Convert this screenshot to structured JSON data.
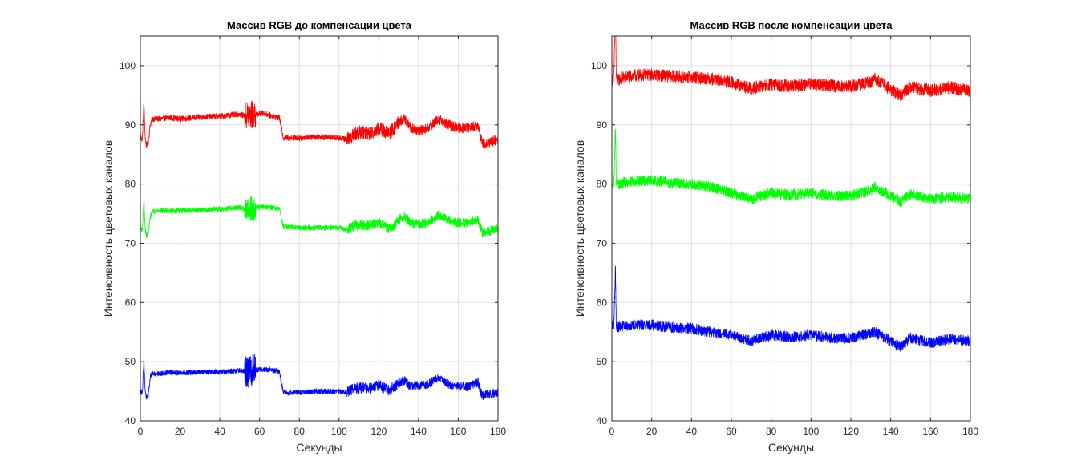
{
  "chart_data": [
    {
      "type": "line",
      "title": "Массив RGB до компенсации цвета",
      "xlabel": "Секунды",
      "ylabel": "Интенсивность цветовых каналов",
      "xlim": [
        0,
        180
      ],
      "ylim": [
        40,
        105
      ],
      "xticks": [
        0,
        20,
        40,
        60,
        80,
        100,
        120,
        140,
        160,
        180
      ],
      "yticks": [
        40,
        50,
        60,
        70,
        80,
        90,
        100
      ],
      "grid": true,
      "series": [
        {
          "color": "#ff0000",
          "x": [
            0,
            1,
            1.8,
            2.4,
            3,
            4,
            5,
            6,
            8,
            10,
            15,
            20,
            30,
            40,
            50,
            53,
            58,
            62,
            66,
            70,
            72,
            80,
            90,
            100,
            104,
            108,
            112,
            116,
            120,
            125,
            128,
            130,
            133,
            136,
            140,
            145,
            150,
            155,
            160,
            165,
            170,
            172,
            175,
            180
          ],
          "values": [
            88,
            87.5,
            94,
            88,
            86.5,
            87,
            90,
            91,
            91,
            91,
            91.2,
            91,
            91.3,
            91.5,
            91.8,
            91.5,
            91.8,
            92,
            91.5,
            91.2,
            87.8,
            87.8,
            88,
            87.8,
            87.5,
            88.5,
            88.8,
            88.5,
            89.5,
            88.5,
            89.5,
            90.5,
            91,
            89.5,
            89,
            89.5,
            91,
            90,
            89.5,
            89.5,
            90,
            86.8,
            87,
            87.5
          ],
          "noise": 0.5,
          "noise_segments": [
            [
              52.5,
              58,
              2.5
            ],
            [
              104,
              130,
              1.2
            ],
            [
              130,
              180,
              0.9
            ]
          ]
        },
        {
          "color": "#00ff00",
          "x": [
            0,
            1,
            1.8,
            2.4,
            3,
            4,
            5,
            6,
            8,
            10,
            15,
            20,
            30,
            40,
            50,
            53,
            58,
            62,
            66,
            70,
            72,
            80,
            90,
            100,
            104,
            108,
            112,
            116,
            120,
            125,
            128,
            130,
            133,
            136,
            140,
            145,
            150,
            155,
            160,
            165,
            170,
            172,
            175,
            180
          ],
          "values": [
            72.5,
            72.3,
            77.5,
            72.5,
            71.3,
            71.7,
            74.5,
            75.3,
            75.5,
            75.5,
            75.5,
            75.5,
            75.6,
            75.8,
            76,
            75.8,
            76,
            76.2,
            76,
            75.8,
            72.8,
            72.6,
            72.6,
            72.6,
            72.3,
            73,
            73,
            73,
            73.5,
            72.5,
            73,
            74,
            74.5,
            73.5,
            73.2,
            73.5,
            74.8,
            73.8,
            73.5,
            73.5,
            74,
            71.8,
            72,
            72.5
          ],
          "noise": 0.45,
          "noise_segments": [
            [
              52.5,
              58,
              2.2
            ],
            [
              104,
              130,
              0.9
            ],
            [
              130,
              180,
              0.8
            ]
          ]
        },
        {
          "color": "#0000ff",
          "x": [
            0,
            1,
            1.8,
            2.4,
            3,
            4,
            5,
            6,
            8,
            10,
            15,
            20,
            30,
            40,
            50,
            53,
            58,
            62,
            66,
            70,
            72,
            80,
            90,
            100,
            104,
            108,
            112,
            116,
            120,
            125,
            128,
            130,
            133,
            136,
            140,
            145,
            150,
            155,
            160,
            165,
            170,
            172,
            175,
            180
          ],
          "values": [
            45,
            44.7,
            50.5,
            45,
            44,
            44.3,
            47.5,
            48,
            48,
            48,
            48.2,
            48.1,
            48.2,
            48.3,
            48.5,
            48.3,
            48.6,
            48.7,
            48.6,
            48.3,
            44.8,
            44.8,
            45,
            45,
            44.8,
            45.5,
            45.6,
            45.4,
            46,
            45.2,
            45.8,
            46.3,
            46.8,
            45.8,
            46,
            46.3,
            47.3,
            46.2,
            45.8,
            45.8,
            46.5,
            44.2,
            44.5,
            44.8
          ],
          "noise": 0.45,
          "noise_segments": [
            [
              52.5,
              58,
              2.8
            ],
            [
              104,
              130,
              1.0
            ],
            [
              130,
              180,
              0.8
            ]
          ]
        }
      ]
    },
    {
      "type": "line",
      "title": "Массив RGB после компенсации цвета",
      "xlabel": "Секунды",
      "ylabel": "Интенсивность цветовых каналов",
      "xlim": [
        0,
        180
      ],
      "ylim": [
        40,
        105
      ],
      "xticks": [
        0,
        20,
        40,
        60,
        80,
        100,
        120,
        140,
        160,
        180
      ],
      "yticks": [
        40,
        50,
        60,
        70,
        80,
        90,
        100
      ],
      "grid": true,
      "series": [
        {
          "color": "#ff0000",
          "x": [
            0,
            1,
            1.8,
            2.2,
            3,
            5,
            10,
            20,
            30,
            40,
            50,
            60,
            65,
            70,
            80,
            90,
            100,
            110,
            120,
            130,
            132,
            140,
            145,
            150,
            160,
            170,
            180
          ],
          "values": [
            97.5,
            98,
            110,
            98,
            97.5,
            98,
            98.3,
            98.5,
            98.2,
            98,
            97.8,
            97.2,
            96.5,
            96.2,
            96.8,
            96.5,
            97,
            96.6,
            96.5,
            97.3,
            97.8,
            96,
            95,
            96.5,
            95.8,
            96.3,
            95.8
          ],
          "noise": 1.1,
          "noise_segments": []
        },
        {
          "color": "#00ff00",
          "x": [
            0,
            1,
            1.8,
            2.2,
            3,
            5,
            10,
            20,
            30,
            40,
            50,
            60,
            65,
            70,
            80,
            90,
            100,
            110,
            120,
            130,
            132,
            140,
            145,
            150,
            160,
            170,
            180
          ],
          "values": [
            80,
            80.3,
            90,
            80.3,
            79.8,
            80.2,
            80.5,
            80.6,
            80.2,
            80,
            79.5,
            78.5,
            78,
            77.5,
            78.5,
            78.2,
            78.5,
            78,
            78,
            79,
            79.5,
            78,
            77,
            78.2,
            77.5,
            77.8,
            77.5
          ],
          "noise": 0.95,
          "noise_segments": []
        },
        {
          "color": "#0000ff",
          "x": [
            0,
            1,
            1.8,
            2.2,
            3,
            5,
            10,
            20,
            30,
            40,
            50,
            60,
            65,
            70,
            80,
            90,
            100,
            110,
            120,
            130,
            132,
            140,
            145,
            150,
            160,
            170,
            180
          ],
          "values": [
            56,
            56.3,
            66,
            56.3,
            55.8,
            56,
            56.2,
            56.2,
            55.8,
            55.6,
            55,
            54.5,
            54,
            53.5,
            54.5,
            54.2,
            54.5,
            54,
            54,
            54.8,
            55,
            53.5,
            52.5,
            54,
            53.2,
            53.8,
            53.5
          ],
          "noise": 0.95,
          "noise_segments": []
        }
      ]
    }
  ]
}
